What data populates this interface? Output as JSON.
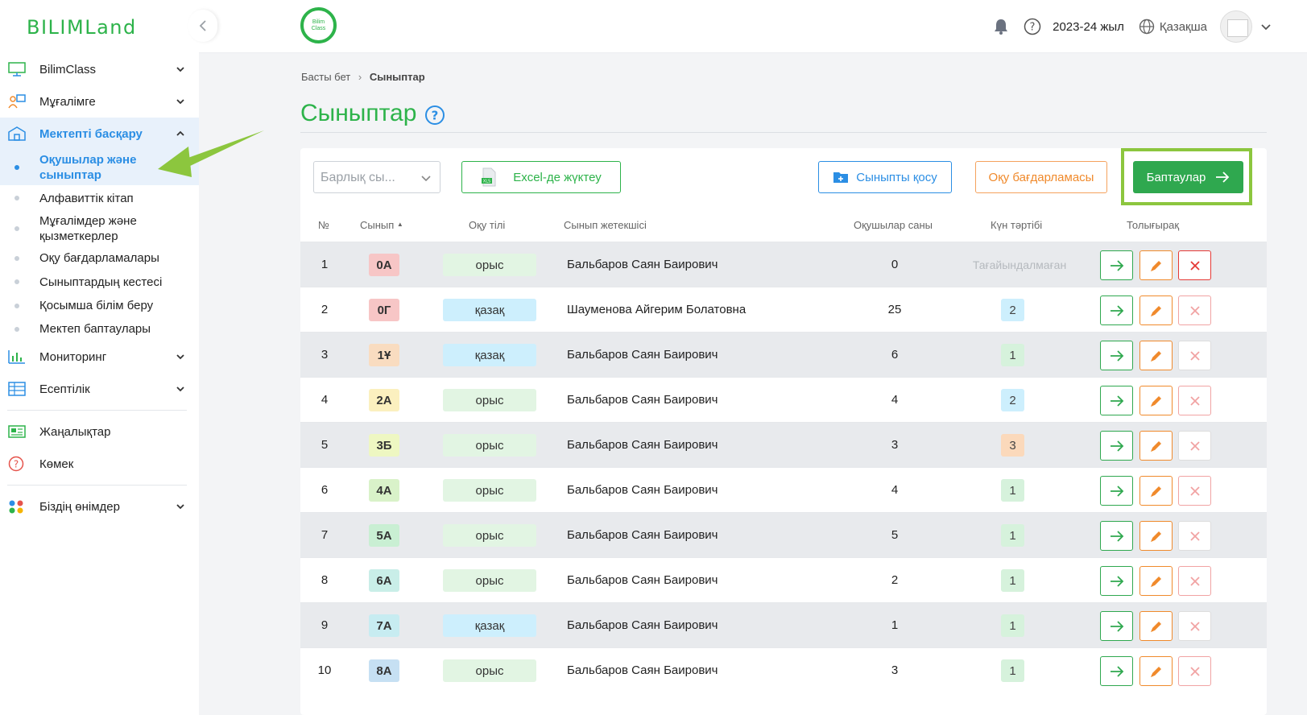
{
  "brand": {
    "logo": "BILIMLand",
    "app_logo_line1": "Bilim",
    "app_logo_line2": "Class"
  },
  "topbar": {
    "year": "2023-24 жыл",
    "language": "Қазақша"
  },
  "sidebar": {
    "items": [
      {
        "label": "BilimClass",
        "icon": "monitor-icon",
        "expandable": true
      },
      {
        "label": "Мұғалімге",
        "icon": "teacher-icon",
        "expandable": true
      },
      {
        "label": "Мектепті басқару",
        "icon": "school-icon",
        "expandable": true,
        "expanded": true
      },
      {
        "label": "Мониторинг",
        "icon": "bar-chart-icon",
        "expandable": true
      },
      {
        "label": "Есептілік",
        "icon": "table-icon",
        "expandable": true
      },
      {
        "label": "Жаңалықтар",
        "icon": "newspaper-icon",
        "expandable": false
      },
      {
        "label": "Көмек",
        "icon": "help-icon",
        "expandable": false
      },
      {
        "label": "Біздің өнімдер",
        "icon": "apps-icon",
        "expandable": true
      }
    ],
    "subitems": [
      {
        "label": "Оқушылар және сыныптар",
        "active": true
      },
      {
        "label": "Алфавиттік кітап"
      },
      {
        "label": "Мұғалімдер және қызметкерлер"
      },
      {
        "label": "Оқу бағдарламалары"
      },
      {
        "label": "Сыныптардың кестесі"
      },
      {
        "label": "Қосымша білім беру"
      },
      {
        "label": "Мектеп баптаулары"
      }
    ]
  },
  "breadcrumb": {
    "home": "Басты бет",
    "current": "Сыныптар"
  },
  "page": {
    "title": "Сыныптар"
  },
  "toolbar": {
    "class_select_value": "Барлық сы...",
    "excel_label": "Excel-де жүктеу",
    "add_class_label": "Сыныпты қосу",
    "program_label": "Оқу бағдарламасы",
    "settings_label": "Баптаулар"
  },
  "table": {
    "headers": [
      "№",
      "Сынып",
      "Оқу тілі",
      "Сынып жетекшісі",
      "Оқушылар саны",
      "Күн тәртібі",
      "Толығырақ"
    ],
    "rows": [
      {
        "num": "1",
        "cls": "0А",
        "lang": "орыс",
        "teacher": "Бальбаров Саян Баирович",
        "count": "0",
        "regime": "Тағайындалмаған"
      },
      {
        "num": "2",
        "cls": "0Г",
        "lang": "қазақ",
        "teacher": "Шауменова Айгерим Болатовна",
        "count": "25",
        "regime": "2"
      },
      {
        "num": "3",
        "cls": "1Ұ",
        "lang": "қазақ",
        "teacher": "Бальбаров Саян Баирович",
        "count": "6",
        "regime": "1"
      },
      {
        "num": "4",
        "cls": "2А",
        "lang": "орыс",
        "teacher": "Бальбаров Саян Баирович",
        "count": "4",
        "regime": "2"
      },
      {
        "num": "5",
        "cls": "3Б",
        "lang": "орыс",
        "teacher": "Бальбаров Саян Баирович",
        "count": "3",
        "regime": "3"
      },
      {
        "num": "6",
        "cls": "4А",
        "lang": "орыс",
        "teacher": "Бальбаров Саян Баирович",
        "count": "4",
        "regime": "1"
      },
      {
        "num": "7",
        "cls": "5А",
        "lang": "орыс",
        "teacher": "Бальбаров Саян Баирович",
        "count": "5",
        "regime": "1"
      },
      {
        "num": "8",
        "cls": "6А",
        "lang": "орыс",
        "teacher": "Бальбаров Саян Баирович",
        "count": "2",
        "regime": "1"
      },
      {
        "num": "9",
        "cls": "7А",
        "lang": "қазақ",
        "teacher": "Бальбаров Саян Баирович",
        "count": "1",
        "regime": "1"
      },
      {
        "num": "10",
        "cls": "8А",
        "lang": "орыс",
        "teacher": "Бальбаров Саян Баирович",
        "count": "3",
        "regime": "1"
      }
    ]
  },
  "colors": {
    "brand_green": "#2db34a",
    "accent_blue": "#2b8ee4",
    "accent_orange": "#f08a2c",
    "highlight_lime": "#8cc63e",
    "class_badges": [
      "#f7c6c6",
      "#f7c6c6",
      "#f9dcc0",
      "#fbf0bf",
      "#eef7c2",
      "#d9f2c9",
      "#c9efd3",
      "#c9eee8",
      "#c7ecf1",
      "#c6e0f3"
    ],
    "regime_badges": {
      "1": "#d6f2dc",
      "2": "#cdeffd",
      "3": "#fbd9bb"
    }
  }
}
